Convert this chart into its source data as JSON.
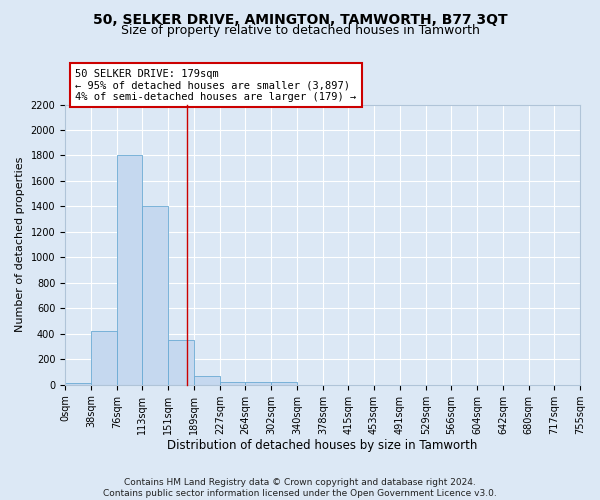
{
  "title_line1": "50, SELKER DRIVE, AMINGTON, TAMWORTH, B77 3QT",
  "title_line2": "Size of property relative to detached houses in Tamworth",
  "xlabel": "Distribution of detached houses by size in Tamworth",
  "ylabel": "Number of detached properties",
  "footnote": "Contains HM Land Registry data © Crown copyright and database right 2024.\nContains public sector information licensed under the Open Government Licence v3.0.",
  "bar_edges": [
    0,
    38,
    76,
    113,
    151,
    189,
    227,
    264,
    302,
    340,
    378,
    415,
    453,
    491,
    529,
    566,
    604,
    642,
    680,
    717,
    755
  ],
  "bar_heights": [
    15,
    425,
    1800,
    1400,
    350,
    70,
    25,
    20,
    20,
    0,
    0,
    0,
    0,
    0,
    0,
    0,
    0,
    0,
    0,
    0
  ],
  "bar_color": "#c5d8ef",
  "bar_edgecolor": "#6aaad4",
  "vline_x": 179,
  "vline_color": "#cc0000",
  "annotation_text": "50 SELKER DRIVE: 179sqm\n← 95% of detached houses are smaller (3,897)\n4% of semi-detached houses are larger (179) →",
  "annotation_box_edgecolor": "#cc0000",
  "annotation_box_facecolor": "white",
  "ylim": [
    0,
    2200
  ],
  "yticks": [
    0,
    200,
    400,
    600,
    800,
    1000,
    1200,
    1400,
    1600,
    1800,
    2000,
    2200
  ],
  "tick_labels": [
    "0sqm",
    "38sqm",
    "76sqm",
    "113sqm",
    "151sqm",
    "189sqm",
    "227sqm",
    "264sqm",
    "302sqm",
    "340sqm",
    "378sqm",
    "415sqm",
    "453sqm",
    "491sqm",
    "529sqm",
    "566sqm",
    "604sqm",
    "642sqm",
    "680sqm",
    "717sqm",
    "755sqm"
  ],
  "background_color": "#dce8f5",
  "plot_bg_color": "#dce8f5",
  "grid_color": "white",
  "title1_fontsize": 10,
  "title2_fontsize": 9,
  "xlabel_fontsize": 8.5,
  "ylabel_fontsize": 8,
  "tick_fontsize": 7,
  "annot_fontsize": 7.5,
  "footnote_fontsize": 6.5
}
